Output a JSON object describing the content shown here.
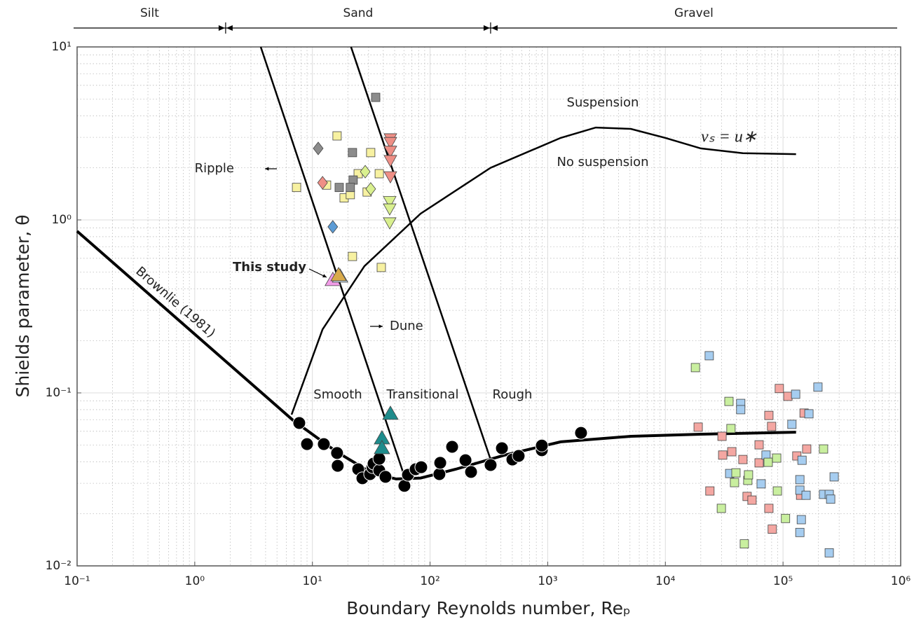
{
  "chart_data": {
    "type": "scatter",
    "xlabel": "Boundary Reynolds number, Reₚ",
    "ylabel": "Shields parameter, θ",
    "xscale": "log",
    "yscale": "log",
    "xlim": [
      0.1,
      1000000
    ],
    "ylim": [
      0.01,
      10
    ],
    "xticks": [
      {
        "value": 0.1,
        "label": "10⁻¹"
      },
      {
        "value": 1,
        "label": "10⁰"
      },
      {
        "value": 10,
        "label": "10¹"
      },
      {
        "value": 100,
        "label": "10²"
      },
      {
        "value": 1000,
        "label": "10³"
      },
      {
        "value": 10000,
        "label": "10⁴"
      },
      {
        "value": 100000,
        "label": "10⁵"
      },
      {
        "value": 1000000,
        "label": "10⁶"
      }
    ],
    "yticks": [
      {
        "value": 0.01,
        "label": "10⁻²"
      },
      {
        "value": 0.1,
        "label": "10⁻¹"
      },
      {
        "value": 1,
        "label": "10⁰"
      },
      {
        "value": 10,
        "label": "10¹"
      }
    ],
    "x_minor_ticks": [
      0.2,
      0.3,
      0.4,
      0.5,
      0.6,
      0.7,
      0.8,
      0.9,
      2,
      3,
      4,
      5,
      6,
      7,
      8,
      9,
      20,
      30,
      40,
      50,
      60,
      70,
      80,
      90,
      200,
      300,
      400,
      500,
      600,
      700,
      800,
      900,
      2000,
      3000,
      4000,
      5000,
      6000,
      7000,
      8000,
      9000,
      20000,
      30000,
      40000,
      50000,
      60000,
      70000,
      80000,
      90000,
      200000,
      300000,
      400000,
      500000,
      600000,
      700000,
      800000,
      900000
    ],
    "y_minor_ticks": [
      0.02,
      0.03,
      0.04,
      0.05,
      0.06,
      0.07,
      0.08,
      0.09,
      0.2,
      0.3,
      0.4,
      0.5,
      0.6,
      0.7,
      0.8,
      0.9,
      2,
      3,
      4,
      5,
      6,
      7,
      8,
      9
    ],
    "grid": true,
    "size_classes": {
      "labels": [
        "Silt",
        "Sand",
        "Gravel"
      ],
      "boundaries": [
        1.83,
        327
      ]
    },
    "curves": [
      {
        "color": "#000000",
        "width": 4,
        "x": [
          0.1,
          6.84,
          16,
          31.8,
          51.4,
          83,
          165,
          431,
          1288,
          5080,
          20000,
          129000
        ],
        "values": [
          0.861,
          0.0695,
          0.0457,
          0.0345,
          0.0318,
          0.0322,
          0.0362,
          0.0437,
          0.0521,
          0.0561,
          0.0577,
          0.0593
        ]
      },
      {
        "color": "#000000",
        "width": 2.5,
        "x": [
          6.65,
          12.2,
          27.7,
          83,
          327,
          1288,
          2560,
          5080,
          10000,
          20000,
          45600,
          129000
        ],
        "values": [
          0.0748,
          0.233,
          0.541,
          1.087,
          2.0,
          2.98,
          3.42,
          3.36,
          2.98,
          2.59,
          2.43,
          2.4
        ]
      },
      {
        "color": "#000000",
        "width": 2.5,
        "x": [
          3.64,
          60.5
        ],
        "values": [
          10,
          0.033
        ]
      },
      {
        "color": "#000000",
        "width": 2.5,
        "x": [
          21.3,
          327
        ],
        "values": [
          10,
          0.0412
        ]
      }
    ],
    "series": [
      {
        "marker": "circle",
        "color": "#000000",
        "x": [
          7.73,
          9.0,
          12.5,
          16.2,
          16.4,
          24.5,
          26.6,
          30.9,
          32.4,
          33.1,
          37,
          41.8,
          37,
          60.5,
          64.9,
          75.4,
          84.1,
          120,
          122,
          154,
          200,
          223,
          327,
          408,
          501,
          566,
          891,
          891,
          1919
        ],
        "values": [
          0.067,
          0.0506,
          0.0506,
          0.0449,
          0.0379,
          0.0362,
          0.0321,
          0.0339,
          0.0372,
          0.039,
          0.0356,
          0.0327,
          0.0416,
          0.029,
          0.0336,
          0.0362,
          0.0372,
          0.0339,
          0.0394,
          0.0488,
          0.0408,
          0.0349,
          0.0383,
          0.0479,
          0.0412,
          0.0432,
          0.0466,
          0.0496,
          0.0587
        ]
      },
      {
        "marker": "square",
        "color": "#f7f1a1",
        "x": [
          16.2,
          7.33,
          13.2,
          18.6,
          21,
          24.5,
          31.3,
          29.2,
          37,
          21.9,
          38.5
        ],
        "values": [
          3.06,
          1.54,
          1.59,
          1.34,
          1.4,
          1.85,
          2.45,
          1.45,
          1.85,
          0.615,
          0.531
        ]
      },
      {
        "marker": "square",
        "color": "#8c8c8c",
        "x": [
          34.5,
          21.9,
          16.9,
          22.2,
          21
        ],
        "values": [
          5.11,
          2.45,
          1.54,
          1.7,
          1.54
        ]
      },
      {
        "marker": "diamond",
        "color": "#8c8c8c",
        "x": [
          11.2
        ],
        "values": [
          2.59
        ]
      },
      {
        "marker": "diamond",
        "color": "#ef8f86",
        "x": [
          12.2
        ],
        "values": [
          1.64
        ]
      },
      {
        "marker": "diamond",
        "color": "#5b9bd5",
        "x": [
          14.9
        ],
        "values": [
          0.912
        ]
      },
      {
        "marker": "diamond",
        "color": "#d9f08f",
        "x": [
          28.1,
          31.3
        ],
        "values": [
          1.9,
          1.51
        ]
      },
      {
        "marker": "triangle-down",
        "color": "#ef8f86",
        "x": [
          46,
          46,
          46,
          46,
          46
        ],
        "values": [
          2.95,
          2.81,
          2.5,
          2.21,
          1.78
        ]
      },
      {
        "marker": "triangle-down",
        "color": "#d9f08f",
        "x": [
          45.4,
          45.4,
          45.4
        ],
        "values": [
          1.28,
          1.16,
          0.964
        ]
      },
      {
        "marker": "triangle-up",
        "color": "#1e8c8c",
        "x": [
          46,
          39,
          39
        ],
        "values": [
          0.0757,
          0.0546,
          0.0479
        ]
      },
      {
        "marker": "triangle-up",
        "color": "#f29ce8",
        "x": [
          14.9
        ],
        "values": [
          0.449
        ]
      },
      {
        "marker": "triangle-up",
        "color": "#cde3f0",
        "x": [
          17.2
        ],
        "values": [
          0.47
        ]
      },
      {
        "marker": "triangle-up",
        "color": "#d9aa4a",
        "x": [
          16.7
        ],
        "values": [
          0.479
        ]
      },
      {
        "marker": "square",
        "color": "#f4a7a2",
        "x": [
          19000,
          23900,
          30300,
          30700,
          36700,
          45600,
          49500,
          54500,
          62600,
          62600,
          75800,
          75800,
          80000,
          81000,
          93000,
          110000,
          131000,
          141000,
          151000,
          159000
        ],
        "values": [
          0.0634,
          0.0271,
          0.0561,
          0.0437,
          0.0457,
          0.0412,
          0.0252,
          0.024,
          0.0501,
          0.0394,
          0.0741,
          0.0215,
          0.064,
          0.0163,
          0.106,
          0.0955,
          0.0432,
          0.0256,
          0.0764,
          0.0474
        ]
      },
      {
        "marker": "square",
        "color": "#a6cdf0",
        "x": [
          23600,
          43700,
          43700,
          35200,
          65200,
          71700,
          119000,
          128000,
          139000,
          139000,
          143000,
          139000,
          145000,
          157000,
          166000,
          198000,
          221000,
          247000,
          254000,
          247000,
          272000
        ],
        "values": [
          0.164,
          0.0869,
          0.08,
          0.0342,
          0.0298,
          0.0437,
          0.0658,
          0.0982,
          0.0315,
          0.0274,
          0.0185,
          0.0156,
          0.0408,
          0.0256,
          0.0757,
          0.108,
          0.0259,
          0.0259,
          0.0243,
          0.0119,
          0.0327
        ]
      },
      {
        "marker": "square",
        "color": "#c9ef9f",
        "x": [
          18000,
          34700,
          36100,
          38700,
          39800,
          46900,
          50200,
          50900,
          29900,
          74800,
          88300,
          89500,
          105000,
          221000
        ],
        "values": [
          0.14,
          0.0893,
          0.0622,
          0.0303,
          0.0345,
          0.0134,
          0.0312,
          0.0336,
          0.0215,
          0.0397,
          0.042,
          0.0271,
          0.0188,
          0.0474
        ]
      }
    ],
    "annotations": [
      "Suspension",
      "No suspension",
      "Ripple",
      "Dune",
      "This study",
      "Brownlie (1981)",
      "Smooth",
      "Transitional",
      "Rough",
      "vₛ = u∗"
    ]
  }
}
